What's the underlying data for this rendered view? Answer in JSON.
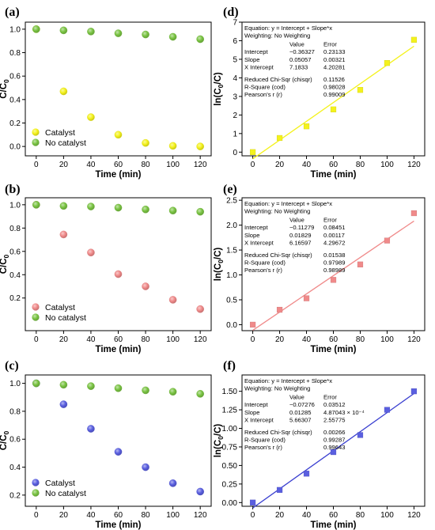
{
  "chart_data": [
    {
      "type": "scatter",
      "panel_label": "(a)",
      "xlabel": "Time (min)",
      "ylabel_main": "C/C",
      "ylabel_sub": "0",
      "xlim": [
        -8,
        128
      ],
      "ylim": [
        -0.08,
        1.06
      ],
      "xticks": [
        0,
        20,
        40,
        60,
        80,
        100,
        120
      ],
      "yticks": [
        0.0,
        0.2,
        0.4,
        0.6,
        0.8,
        1.0
      ],
      "ytick_labels": [
        "0.0",
        "0.2",
        "0.4",
        "0.6",
        "0.8",
        "1.0"
      ],
      "legend_placement": "bottom-left",
      "series": [
        {
          "name": "Catalyst",
          "color": "#f4f21c",
          "x": [
            0,
            20,
            40,
            60,
            80,
            100,
            120
          ],
          "y": [
            1.0,
            0.47,
            0.25,
            0.1,
            0.03,
            0.005,
            0.0
          ]
        },
        {
          "name": "No catalyst",
          "color": "#7ac443",
          "x": [
            0,
            20,
            40,
            60,
            80,
            100,
            120
          ],
          "y": [
            1.0,
            0.99,
            0.98,
            0.965,
            0.955,
            0.935,
            0.915
          ]
        }
      ]
    },
    {
      "type": "scatter",
      "panel_label": "(b)",
      "xlabel": "Time (min)",
      "ylabel_main": "C/C",
      "ylabel_sub": "0",
      "xlim": [
        -8,
        128
      ],
      "ylim": [
        -0.08,
        1.06
      ],
      "xticks": [
        0,
        20,
        40,
        60,
        80,
        100,
        120
      ],
      "yticks": [
        0.2,
        0.4,
        0.6,
        0.8,
        1.0
      ],
      "ytick_labels": [
        "0.2",
        "0.4",
        "0.6",
        "0.8",
        "1.0"
      ],
      "legend_placement": "bottom-left",
      "series": [
        {
          "name": "Catalyst",
          "color": "#f08a8a",
          "x": [
            0,
            20,
            40,
            60,
            80,
            100,
            120
          ],
          "y": [
            1.0,
            0.745,
            0.59,
            0.405,
            0.3,
            0.185,
            0.105
          ]
        },
        {
          "name": "No catalyst",
          "color": "#7ac443",
          "x": [
            0,
            20,
            40,
            60,
            80,
            100,
            120
          ],
          "y": [
            1.0,
            0.99,
            0.985,
            0.975,
            0.96,
            0.95,
            0.94
          ]
        }
      ]
    },
    {
      "type": "scatter",
      "panel_label": "(c)",
      "xlabel": "Time (min)",
      "ylabel_main": "C/C",
      "ylabel_sub": "0",
      "xlim": [
        -8,
        128
      ],
      "ylim": [
        0.12,
        1.06
      ],
      "xticks": [
        0,
        20,
        40,
        60,
        80,
        100,
        120
      ],
      "yticks": [
        0.2,
        0.4,
        0.6,
        0.8,
        1.0
      ],
      "ytick_labels": [
        "0.2",
        "0.4",
        "0.6",
        "0.8",
        "1.0"
      ],
      "legend_placement": "bottom-left",
      "series": [
        {
          "name": "Catalyst",
          "color": "#5a5fe0",
          "x": [
            0,
            20,
            40,
            60,
            80,
            100,
            120
          ],
          "y": [
            1.0,
            0.85,
            0.675,
            0.51,
            0.4,
            0.285,
            0.225
          ]
        },
        {
          "name": "No catalyst",
          "color": "#7ac443",
          "x": [
            0,
            20,
            40,
            60,
            80,
            100,
            120
          ],
          "y": [
            1.0,
            0.99,
            0.98,
            0.965,
            0.95,
            0.94,
            0.925
          ]
        }
      ]
    },
    {
      "type": "scatter",
      "panel_label": "(d)",
      "xlabel": "Time (min)",
      "ylabel_main": "ln(C",
      "ylabel_sub": "0",
      "ylabel_tail": "/C)",
      "xlim": [
        -8,
        128
      ],
      "ylim": [
        -0.2,
        7.0
      ],
      "xticks": [
        0,
        20,
        40,
        60,
        80,
        100,
        120
      ],
      "yticks": [
        0,
        1,
        2,
        3,
        4,
        5,
        6,
        7
      ],
      "ytick_labels": [
        "0",
        "1",
        "2",
        "3",
        "4",
        "5",
        "6",
        "7"
      ],
      "point_color": "#f4f21c",
      "fit_line": {
        "color": "#f4f21c",
        "intercept": -0.36327,
        "slope": 0.05057,
        "x_range": [
          0,
          120
        ]
      },
      "x": [
        0,
        20,
        40,
        60,
        80,
        100,
        120
      ],
      "y": [
        0.0,
        0.76,
        1.39,
        2.3,
        3.35,
        4.8,
        6.05
      ],
      "fit_table": {
        "equation": "Equation: y = Intercept + Slope*x",
        "weighting": "Weighting: No Weighting",
        "header_value": "Value",
        "header_error": "Error",
        "intercept_label": "Intercept",
        "intercept_value": "−0.36327",
        "intercept_error": "0.23133",
        "slope_label": "Slope",
        "slope_value": "0.05057",
        "slope_error": "0.00321",
        "xint_label": "X Intercept",
        "xint_value": "7.1833",
        "xint_error": "4.20281",
        "chisqr_label": "Reduced Chi-Sqr (chisqr)",
        "chisqr_value": "0.11526",
        "rsq_label": "R-Square (cod)",
        "rsq_value": "0.98028",
        "pearson_label": "Pearson's r (r)",
        "pearson_value": "0.99009"
      }
    },
    {
      "type": "scatter",
      "panel_label": "(e)",
      "xlabel": "Time (min)",
      "ylabel_main": "ln(C",
      "ylabel_sub": "0",
      "ylabel_tail": "/C)",
      "xlim": [
        -8,
        128
      ],
      "ylim": [
        -0.12,
        2.55
      ],
      "xticks": [
        0,
        20,
        40,
        60,
        80,
        100,
        120
      ],
      "yticks": [
        0.0,
        0.5,
        1.0,
        1.5,
        2.0,
        2.5
      ],
      "ytick_labels": [
        "0.0",
        "0.5",
        "1.0",
        "1.5",
        "2.0",
        "2.5"
      ],
      "point_color": "#f08a8a",
      "fit_line": {
        "color": "#f08a8a",
        "intercept": -0.11279,
        "slope": 0.01829,
        "x_range": [
          0,
          120
        ]
      },
      "x": [
        0,
        20,
        40,
        60,
        80,
        100,
        120
      ],
      "y": [
        0.0,
        0.3,
        0.53,
        0.9,
        1.21,
        1.69,
        2.24
      ],
      "fit_table": {
        "equation": "Equation: y = Intercept + Slope*x",
        "weighting": "Weighting: No Weighting",
        "header_value": "Value",
        "header_error": "Error",
        "intercept_label": "Intercept",
        "intercept_value": "−0.11279",
        "intercept_error": "0.08451",
        "slope_label": "Slope",
        "slope_value": "0.01829",
        "slope_error": "0.00117",
        "xint_label": "X Intercept",
        "xint_value": "6.16597",
        "xint_error": "4.29672",
        "chisqr_label": "Reduced Chi-Sqr (chisqr)",
        "chisqr_value": "0.01538",
        "rsq_label": "R-Square (cod)",
        "rsq_value": "0.97989",
        "pearson_label": "Pearson's r (r)",
        "pearson_value": "0.98989"
      }
    },
    {
      "type": "scatter",
      "panel_label": "(f)",
      "xlabel": "Time (min)",
      "ylabel_main": "ln(C",
      "ylabel_sub": "0",
      "ylabel_tail": "/C)",
      "xlim": [
        -8,
        128
      ],
      "ylim": [
        -0.05,
        1.72
      ],
      "xticks": [
        0,
        20,
        40,
        60,
        80,
        100,
        120
      ],
      "yticks": [
        0.0,
        0.25,
        0.5,
        0.75,
        1.0,
        1.25,
        1.5
      ],
      "ytick_labels": [
        "0.00",
        "0.25",
        "0.50",
        "0.75",
        "1.00",
        "1.25",
        "1.50"
      ],
      "point_color": "#5a5fe0",
      "fit_line": {
        "color": "#3a3fd0",
        "intercept": -0.07276,
        "slope": 0.01285,
        "x_range": [
          0,
          120
        ]
      },
      "x": [
        0,
        20,
        40,
        60,
        80,
        100,
        120
      ],
      "y": [
        0.0,
        0.17,
        0.39,
        0.68,
        0.91,
        1.25,
        1.5
      ],
      "fit_table": {
        "equation": "Equation: y = Intercept + Slope*x",
        "weighting": "Weighting: No Weighting",
        "header_value": "Value",
        "header_error": "Error",
        "intercept_label": "Intercept",
        "intercept_value": "−0.07276",
        "intercept_error": "0.03512",
        "slope_label": "Slope",
        "slope_value": "0.01285",
        "slope_error": "4.87043 × 10⁻⁴",
        "xint_label": "X Intercept",
        "xint_value": "5.66307",
        "xint_error": "2.55775",
        "chisqr_label": "Reduced Chi-Sqr (chisqr)",
        "chisqr_value": "0.00266",
        "rsq_label": "R-Square (cod)",
        "rsq_value": "0.99287",
        "pearson_label": "Pearson's r (r)",
        "pearson_value": "0.99643"
      }
    }
  ]
}
